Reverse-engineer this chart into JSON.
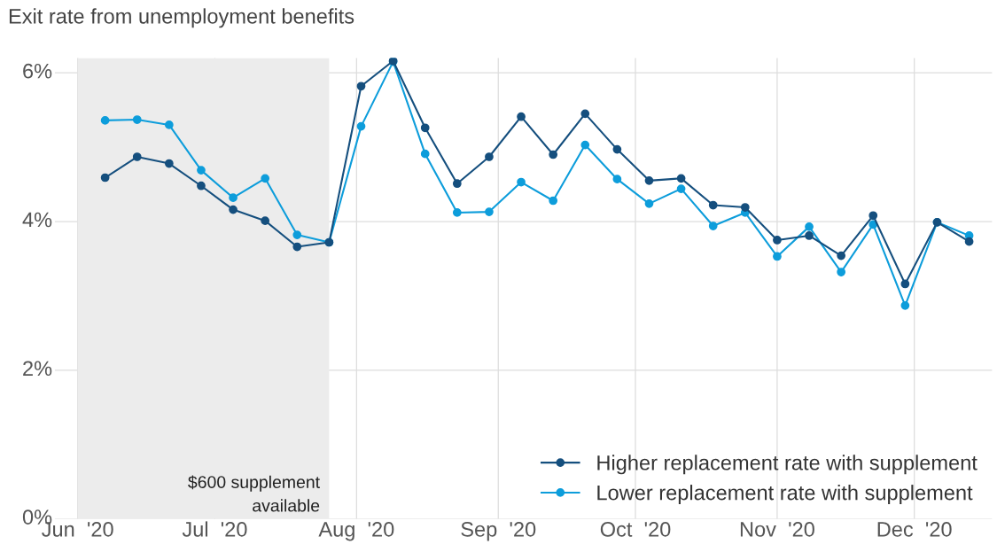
{
  "chart_data": {
    "type": "line",
    "title": "Exit rate from unemployment benefits",
    "x": [
      "2020-06-07",
      "2020-06-14",
      "2020-06-21",
      "2020-06-28",
      "2020-07-05",
      "2020-07-12",
      "2020-07-19",
      "2020-07-26",
      "2020-08-02",
      "2020-08-09",
      "2020-08-16",
      "2020-08-23",
      "2020-08-30",
      "2020-09-06",
      "2020-09-13",
      "2020-09-20",
      "2020-09-27",
      "2020-10-04",
      "2020-10-11",
      "2020-10-18",
      "2020-10-25",
      "2020-11-01",
      "2020-11-08",
      "2020-11-15",
      "2020-11-22",
      "2020-11-29",
      "2020-12-06",
      "2020-12-13"
    ],
    "series": [
      {
        "name": "Higher replacement rate with supplement",
        "color": "#154f7e",
        "values": [
          4.59,
          4.87,
          4.78,
          4.48,
          4.16,
          4.01,
          3.66,
          3.72,
          5.82,
          6.16,
          5.26,
          4.51,
          4.87,
          5.41,
          4.9,
          5.45,
          4.97,
          4.55,
          4.58,
          4.22,
          4.19,
          3.75,
          3.81,
          3.54,
          4.08,
          3.16,
          3.99,
          3.73
        ]
      },
      {
        "name": "Lower replacement rate with supplement",
        "color": "#0d9ddb",
        "values": [
          5.36,
          5.37,
          5.3,
          4.69,
          4.32,
          4.58,
          3.82,
          3.72,
          5.28,
          6.15,
          4.91,
          4.12,
          4.13,
          4.53,
          4.28,
          5.03,
          4.57,
          4.24,
          4.44,
          3.94,
          4.12,
          3.53,
          3.93,
          3.32,
          3.96,
          2.87,
          3.99,
          3.81
        ]
      }
    ],
    "xlim": [
      "2020-05-27",
      "2020-12-18"
    ],
    "xticks": [
      {
        "value": "2020-06-01",
        "label": "Jun  '20"
      },
      {
        "value": "2020-07-01",
        "label": "Jul  '20"
      },
      {
        "value": "2020-08-01",
        "label": "Aug  '20"
      },
      {
        "value": "2020-09-01",
        "label": "Sep  '20"
      },
      {
        "value": "2020-10-01",
        "label": "Oct  '20"
      },
      {
        "value": "2020-11-01",
        "label": "Nov  '20"
      },
      {
        "value": "2020-12-01",
        "label": "Dec  '20"
      }
    ],
    "ylim": [
      0,
      6.2
    ],
    "yticks": [
      {
        "value": 0,
        "label": "0%"
      },
      {
        "value": 2,
        "label": "2%"
      },
      {
        "value": 4,
        "label": "4%"
      },
      {
        "value": 6,
        "label": "6%"
      }
    ],
    "bands": [
      {
        "axis": "x",
        "from": "2020-06-01",
        "to": "2020-07-26",
        "label": "$600 supplement\navailable",
        "color": "#ececec"
      }
    ],
    "grid": true,
    "legend": "bottom right",
    "marker": "circle",
    "line_style": "solid"
  }
}
